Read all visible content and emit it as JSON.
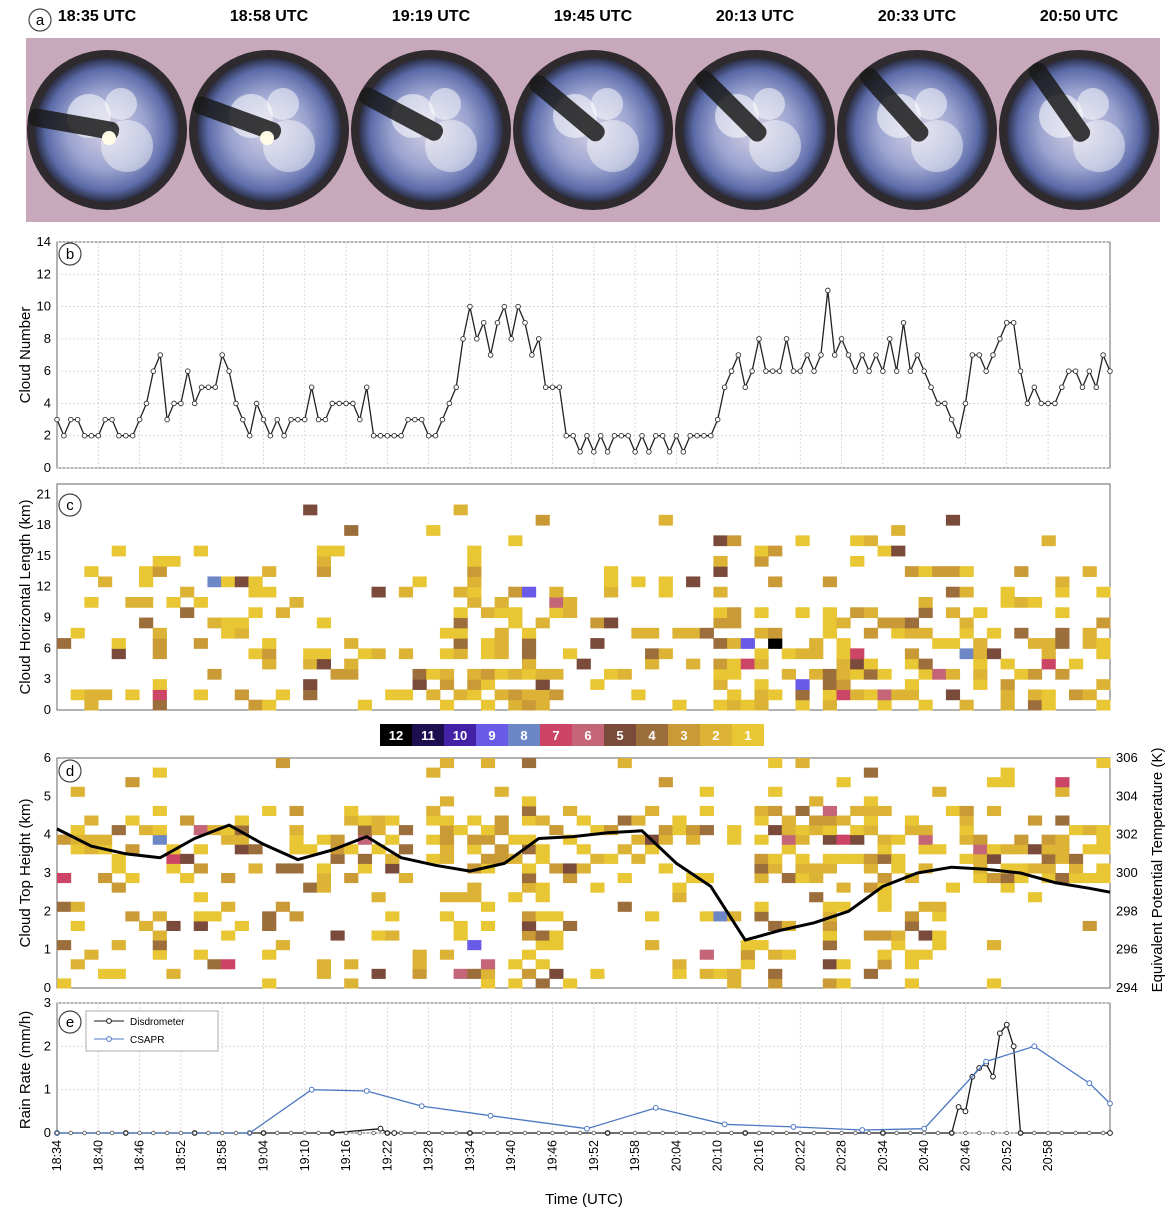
{
  "panel_labels": [
    "a",
    "b",
    "c",
    "d",
    "e"
  ],
  "panel_a": {
    "times": [
      "18:35 UTC",
      "18:58 UTC",
      "19:19 UTC",
      "19:45 UTC",
      "20:13 UTC",
      "20:33 UTC",
      "20:50 UTC"
    ]
  },
  "colors": {
    "rain_disdrometer": "#1a1a1a",
    "rain_csapr": "#4c78c2",
    "theta_e_line": "#000000",
    "cloud_number_line": "#222222"
  },
  "colorbar": {
    "labels": [
      "12",
      "11",
      "10",
      "9",
      "8",
      "7",
      "6",
      "5",
      "4",
      "3",
      "2",
      "1"
    ],
    "colors": [
      "#000000",
      "#1d0f4f",
      "#4422a8",
      "#6a5ae8",
      "#6d86c6",
      "#cc4466",
      "#c46578",
      "#7a4a3a",
      "#9c6e3c",
      "#c99a36",
      "#ddb336",
      "#e9c634"
    ]
  },
  "time_axis": {
    "label": "Time (UTC)",
    "ticks": [
      "18:34",
      "18:40",
      "18:46",
      "18:52",
      "18:58",
      "19:04",
      "19:10",
      "19:16",
      "19:22",
      "19:28",
      "19:34",
      "19:40",
      "19:46",
      "19:52",
      "19:58",
      "20:04",
      "20:10",
      "20:16",
      "20:22",
      "20:28",
      "20:34",
      "20:40",
      "20:46",
      "20:52",
      "20:58"
    ]
  },
  "chart_data": [
    {
      "type": "line",
      "panel": "b",
      "ylabel": "Cloud Number",
      "ylim": [
        0,
        14
      ],
      "yticks": [
        "0",
        "2",
        "4",
        "6",
        "8",
        "10",
        "12",
        "14"
      ],
      "x_minutes_from_1834": "0..153",
      "values": [
        3,
        2,
        3,
        3,
        2,
        2,
        2,
        3,
        3,
        2,
        2,
        2,
        3,
        4,
        6,
        7,
        3,
        4,
        4,
        6,
        4,
        5,
        5,
        5,
        7,
        6,
        4,
        3,
        2,
        4,
        3,
        2,
        3,
        2,
        3,
        3,
        3,
        5,
        3,
        3,
        4,
        4,
        4,
        4,
        3,
        5,
        2,
        2,
        2,
        2,
        2,
        3,
        3,
        3,
        2,
        2,
        3,
        4,
        5,
        8,
        10,
        8,
        9,
        7,
        9,
        10,
        8,
        10,
        9,
        7,
        8,
        5,
        5,
        5,
        2,
        2,
        1,
        2,
        1,
        2,
        1,
        2,
        2,
        2,
        1,
        2,
        1,
        2,
        2,
        1,
        2,
        1,
        2,
        2,
        2,
        2,
        3,
        5,
        6,
        7,
        5,
        6,
        8,
        6,
        6,
        6,
        8,
        6,
        6,
        7,
        6,
        7,
        11,
        7,
        8,
        7,
        6,
        7,
        6,
        7,
        6,
        8,
        6,
        9,
        6,
        7,
        6,
        5,
        4,
        4,
        3,
        2,
        4,
        7,
        7,
        6,
        7,
        8,
        9,
        9,
        6,
        4,
        5,
        4,
        4,
        4,
        5,
        6,
        6,
        5,
        6,
        5,
        7,
        6
      ]
    },
    {
      "type": "heatmap",
      "panel": "c",
      "ylabel": "Cloud Horizontal Length (km)",
      "ylim": [
        0,
        22
      ],
      "yticks": [
        "0",
        "3",
        "6",
        "9",
        "12",
        "15",
        "18",
        "21"
      ],
      "legend": "colorbar (counts 1-12)"
    },
    {
      "type": "heatmap",
      "panel": "d",
      "ylabel": "Cloud Top Height (km)",
      "ylabel_right": "Equivalent Potential Temperature (K)",
      "ylim": [
        0,
        6
      ],
      "yticks": [
        "0",
        "1",
        "2",
        "3",
        "4",
        "5",
        "6"
      ],
      "ylim_right": [
        294,
        306
      ],
      "yticks_right": [
        "294",
        "296",
        "298",
        "300",
        "302",
        "304",
        "306"
      ],
      "theta_e": {
        "x_minutes": [
          0,
          5,
          10,
          15,
          20,
          25,
          30,
          35,
          40,
          45,
          50,
          55,
          60,
          65,
          70,
          75,
          80,
          85,
          90,
          95,
          100,
          105,
          110,
          115,
          120,
          125,
          130,
          135,
          140,
          145,
          150,
          153
        ],
        "values": [
          302.3,
          301.4,
          301.0,
          300.8,
          301.8,
          302.5,
          301.5,
          300.7,
          301.2,
          301.9,
          300.8,
          300.4,
          300.1,
          300.5,
          301.8,
          301.9,
          302.1,
          302.2,
          300.5,
          299.3,
          296.5,
          297.0,
          297.4,
          298.0,
          299.3,
          300.0,
          300.3,
          300.2,
          300.0,
          299.5,
          299.2,
          299.0
        ]
      }
    },
    {
      "type": "line",
      "panel": "e",
      "ylabel": "Rain Rate (mm/h)",
      "ylim": [
        0,
        3
      ],
      "yticks": [
        "0",
        "1",
        "2",
        "3"
      ],
      "xlabel": "Time (UTC)",
      "legend": "top-left",
      "series": [
        {
          "name": "Disdrometer",
          "x": [
            0,
            10,
            20,
            30,
            40,
            47,
            48,
            49,
            60,
            80,
            100,
            120,
            130,
            131,
            132,
            133,
            134,
            135,
            136,
            137,
            138,
            139,
            140,
            153
          ],
          "y": [
            0,
            0,
            0,
            0,
            0,
            0.1,
            0,
            0,
            0,
            0,
            0,
            0,
            0,
            0.6,
            0.5,
            1.3,
            1.5,
            1.6,
            1.3,
            2.3,
            2.5,
            2.0,
            0,
            0
          ]
        },
        {
          "name": "CSAPR",
          "x": [
            0,
            28,
            37,
            45,
            53,
            63,
            77,
            87,
            97,
            107,
            117,
            126,
            135,
            142,
            150,
            153
          ],
          "y": [
            0,
            0,
            1.0,
            0.97,
            0.62,
            0.4,
            0.1,
            0.58,
            0.2,
            0.14,
            0.07,
            0.1,
            1.65,
            2.0,
            1.15,
            0.68
          ]
        }
      ]
    }
  ]
}
